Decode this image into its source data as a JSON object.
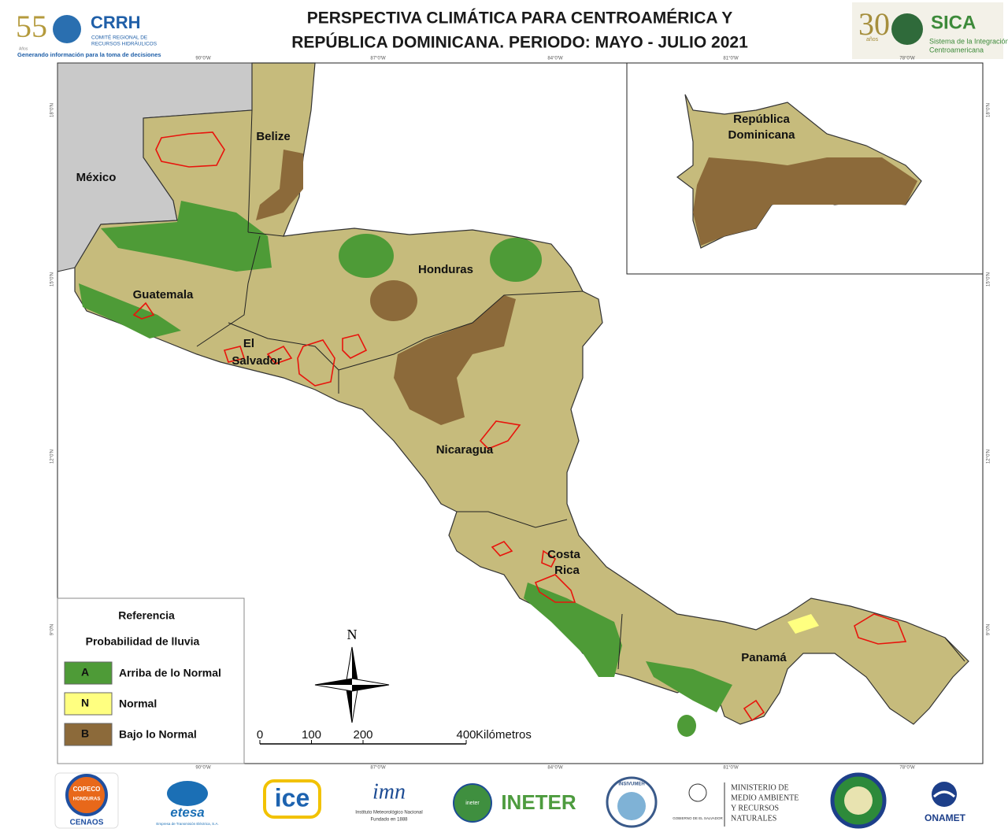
{
  "header": {
    "title": [
      "PERSPECTIVA CLIMÁTICA PARA CENTROAMÉRICA Y",
      "REPÚBLICA DOMINICANA. PERIODO: MAYO - JULIO 2021"
    ],
    "logo_left": {
      "years": "55",
      "years_label": "Años",
      "name": "CRRH",
      "subtitle": [
        "COMITÉ REGIONAL DE",
        "RECURSOS HIDRÁULICOS"
      ],
      "tagline": "Generando información para la toma de decisiones"
    },
    "logo_right": {
      "years": "30",
      "years_label": "años",
      "name": "SICA",
      "subtitle": [
        "Sistema de la Integración",
        "Centroamericana"
      ]
    }
  },
  "map": {
    "countries": {
      "mexico": [
        "México"
      ],
      "belize": [
        "Belize"
      ],
      "guatemala": [
        "Guatemala"
      ],
      "honduras": [
        "Honduras"
      ],
      "el_salvador": [
        "El",
        "Salvador"
      ],
      "nicaragua": [
        "Nicaragua"
      ],
      "costa_rica": [
        "Costa",
        "Rica"
      ],
      "panama": [
        "Panamá"
      ],
      "dominicana": [
        "República",
        "Dominicana"
      ]
    },
    "graticule": {
      "longitudes": [
        "90°0'W",
        "87°0'W",
        "84°0'W",
        "81°0'W",
        "78°0'W"
      ],
      "latitudes": [
        "18°0'N",
        "15°0'N",
        "12°0'N",
        "9°0'N"
      ]
    }
  },
  "legend": {
    "title": "Referencia",
    "subtitle": "Probabilidad de lluvia",
    "items": [
      {
        "code": "A",
        "label": "Arriba de lo Normal",
        "color": "#4e9b37"
      },
      {
        "code": "N",
        "label": "Normal",
        "color": "#ffff80"
      },
      {
        "code": "B",
        "label": "Bajo lo Normal",
        "color": "#8c6a3a"
      }
    ]
  },
  "scale": {
    "ticks": [
      0,
      100,
      200,
      400
    ],
    "unit": "Kilómetros"
  },
  "north": "N",
  "footer": {
    "copeco": [
      "COPECO",
      "HONDURAS",
      "CENAOS"
    ],
    "etesa": [
      "etesa",
      "Empresa de Transmisión Eléctrica, S.A."
    ],
    "ice": "ice",
    "imn": [
      "imn",
      "Instituto Meteorológico Nacional",
      "Fundado en 1888"
    ],
    "ineter": [
      "ineter",
      "INETER"
    ],
    "insivumeh": "INSIVUMEH",
    "marn": [
      "GOBIERNO DE EL SALVADOR",
      "MINISTERIO DE",
      "MEDIO AMBIENTE",
      "Y RECURSOS",
      "NATURALES"
    ],
    "onamet": "ONAMET"
  }
}
